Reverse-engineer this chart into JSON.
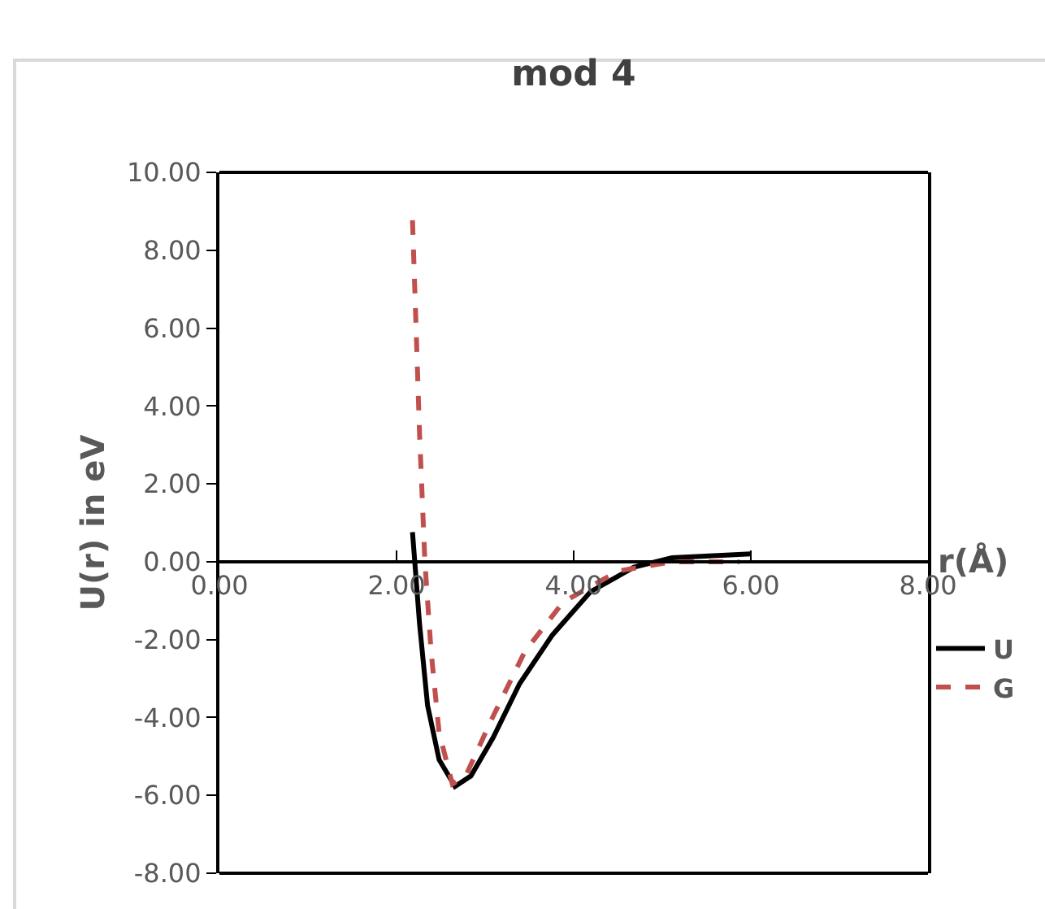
{
  "chart_data": {
    "type": "line",
    "title": "mod 4",
    "xlabel": "r(Å)",
    "ylabel": "U(r) in eV",
    "series": [
      {
        "name": "U",
        "color": "#000000",
        "line_style": "solid",
        "x": [
          2.18,
          2.26,
          2.35,
          2.48,
          2.66,
          2.84,
          3.09,
          3.39,
          3.76,
          4.19,
          4.68,
          5.11,
          6.0
        ],
        "values": [
          0.76,
          -1.6,
          -3.69,
          -5.08,
          -5.77,
          -5.5,
          -4.52,
          -3.13,
          -1.88,
          -0.77,
          -0.14,
          0.1,
          0.2
        ]
      },
      {
        "name": "G",
        "color": "#c0504d",
        "line_style": "dashed",
        "x": [
          2.18,
          2.22,
          2.26,
          2.32,
          2.39,
          2.48,
          2.63,
          2.78,
          3.09,
          3.45,
          3.88,
          4.5,
          5.11,
          5.87
        ],
        "values": [
          8.77,
          6.05,
          3.27,
          0,
          -2.3,
          -4.38,
          -5.71,
          -5.5,
          -3.97,
          -2.3,
          -1.04,
          -0.24,
          0,
          0
        ]
      }
    ],
    "xlim": [
      0,
      8
    ],
    "xticks": [
      {
        "value": 0,
        "label": "0.00"
      },
      {
        "value": 2,
        "label": "2.00"
      },
      {
        "value": 4,
        "label": "4.00"
      },
      {
        "value": 6,
        "label": "6.00"
      },
      {
        "value": 8,
        "label": "8.00"
      }
    ],
    "ylim": [
      -8,
      10
    ],
    "yticks": [
      {
        "value": -8,
        "label": "-8.00"
      },
      {
        "value": -6,
        "label": "-6.00"
      },
      {
        "value": -4,
        "label": "-4.00"
      },
      {
        "value": -2,
        "label": "-2.00"
      },
      {
        "value": 0,
        "label": "0.00"
      },
      {
        "value": 2,
        "label": "2.00"
      },
      {
        "value": 4,
        "label": "4.00"
      },
      {
        "value": 6,
        "label": "6.00"
      },
      {
        "value": 8,
        "label": "8.00"
      },
      {
        "value": 10,
        "label": "10.00"
      }
    ],
    "grid": false,
    "legend": "right",
    "marker": "none"
  }
}
